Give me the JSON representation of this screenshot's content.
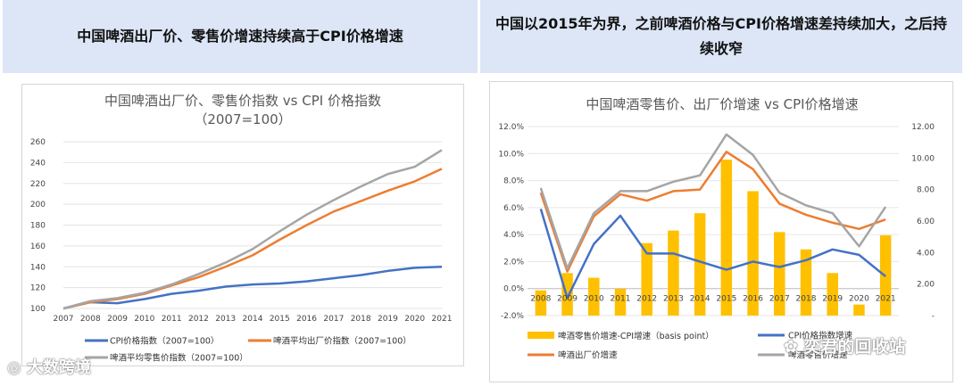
{
  "headers": {
    "left": "中国啤酒出厂价、零售价增速持续高于CPI价格增速",
    "right": "中国以2015年为界，之前啤酒价格与CPI价格增速差持续加大，之后持续收窄"
  },
  "watermarks": {
    "left": "大数跨境",
    "right": "奕君的回收站"
  },
  "chart_data": [
    {
      "type": "line",
      "title": "中国啤酒出厂价、零售价指数 vs CPI 价格指数",
      "subtitle": "（2007=100）",
      "categories": [
        "2007",
        "2008",
        "2009",
        "2010",
        "2011",
        "2012",
        "2013",
        "2014",
        "2015",
        "2016",
        "2017",
        "2018",
        "2019",
        "2020",
        "2021"
      ],
      "ylim": [
        100,
        260
      ],
      "yticks": [
        100,
        120,
        140,
        160,
        180,
        200,
        220,
        240,
        260
      ],
      "series": [
        {
          "name": "CPI价格指数（2007=100）",
          "color": "#4472c4",
          "values": [
            100,
            106,
            105,
            109,
            114,
            117,
            121,
            123,
            124,
            126,
            129,
            132,
            136,
            139,
            140
          ]
        },
        {
          "name": "啤酒平均出厂价指数（2007=100）",
          "color": "#ed7d31",
          "values": [
            100,
            106,
            109,
            114,
            122,
            130,
            140,
            151,
            166,
            180,
            193,
            203,
            213,
            222,
            234
          ]
        },
        {
          "name": "啤酒平均零售价指数（2007=100）",
          "color": "#a5a5a5",
          "values": [
            100,
            107,
            110,
            115,
            123,
            133,
            144,
            157,
            174,
            190,
            204,
            217,
            229,
            236,
            252
          ]
        }
      ]
    },
    {
      "type": "bar+line",
      "title": "中国啤酒零售价、出厂价增速 vs CPI价格增速",
      "categories": [
        "2008",
        "2009",
        "2010",
        "2011",
        "2012",
        "2013",
        "2014",
        "2015",
        "2016",
        "2017",
        "2018",
        "2019",
        "2020",
        "2021"
      ],
      "ylim_left": [
        -2.0,
        12.0
      ],
      "yticks_left": [
        "-2.0%",
        "0.0%",
        "2.0%",
        "4.0%",
        "6.0%",
        "8.0%",
        "10.0%",
        "12.0%"
      ],
      "ylim_right": [
        0,
        12
      ],
      "yticks_right": [
        "-",
        "2.00",
        "4.00",
        "6.00",
        "8.00",
        "10.00",
        "12.00"
      ],
      "bars": {
        "name": "啤酒零售价增速-CPI增速（basis point）",
        "color": "#ffc000",
        "axis": "right",
        "values": [
          1.6,
          2.7,
          2.4,
          1.7,
          4.6,
          5.4,
          6.5,
          9.9,
          7.9,
          5.3,
          4.2,
          2.7,
          0.7,
          5.1
        ]
      },
      "series": [
        {
          "name": "CPI价格指数增速",
          "color": "#4472c4",
          "axis": "left",
          "values": [
            5.9,
            -0.7,
            3.3,
            5.4,
            2.6,
            2.6,
            2.0,
            1.4,
            2.0,
            1.6,
            2.1,
            2.9,
            2.5,
            0.9
          ]
        },
        {
          "name": "啤酒出厂价增速",
          "color": "#ed7d31",
          "axis": "right",
          "values": [
            7.8,
            2.8,
            6.3,
            7.7,
            7.3,
            7.9,
            8.0,
            10.4,
            9.3,
            7.1,
            6.4,
            5.9,
            5.5,
            6.1
          ]
        },
        {
          "name": "啤酒零售价增速",
          "color": "#a5a5a5",
          "axis": "right",
          "values": [
            8.1,
            3.0,
            6.5,
            7.9,
            7.9,
            8.5,
            8.9,
            11.5,
            10.2,
            7.8,
            7.0,
            6.5,
            4.4,
            6.9
          ]
        }
      ]
    }
  ]
}
